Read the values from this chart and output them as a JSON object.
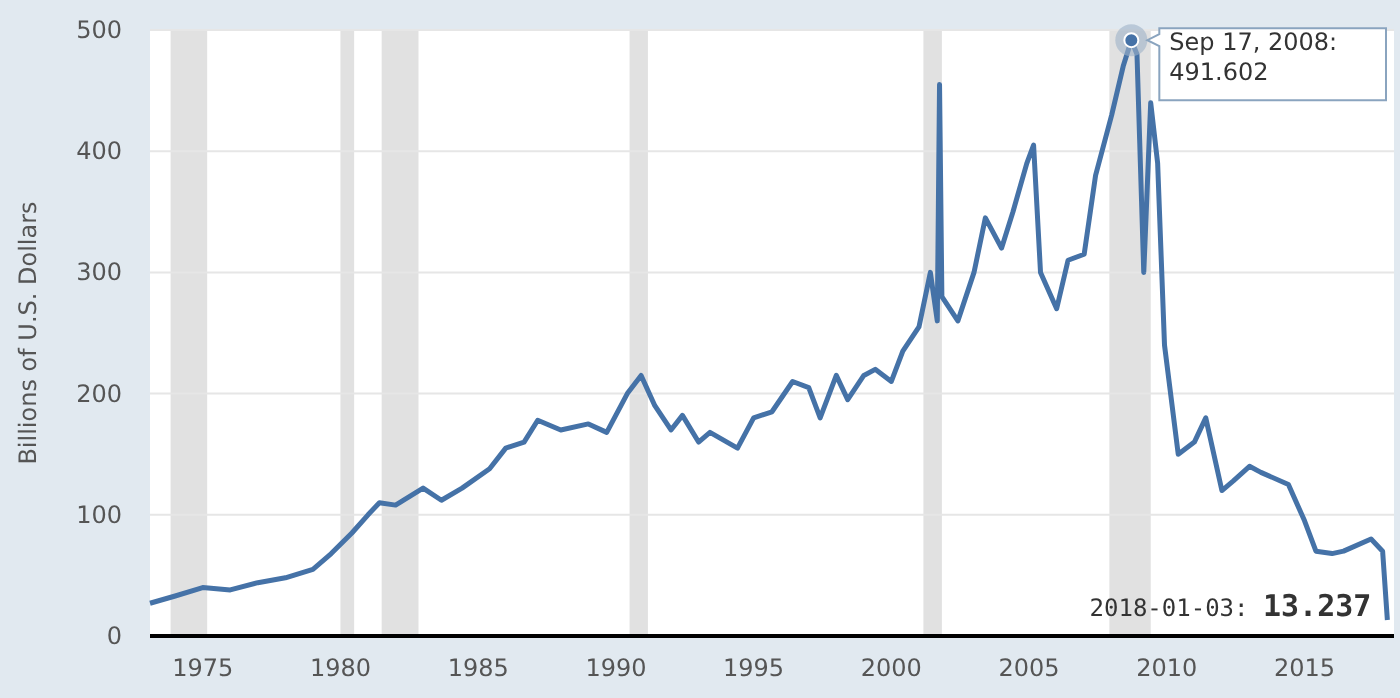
{
  "chart_data": {
    "type": "line",
    "ylabel": "Billions of U.S. Dollars",
    "xlim": [
      "1973-02",
      "2018-04"
    ],
    "xticks": [
      "1975",
      "1980",
      "1985",
      "1990",
      "1995",
      "2000",
      "2005",
      "2010",
      "2015"
    ],
    "ylim": [
      0,
      500
    ],
    "yticks": [
      0,
      100,
      200,
      300,
      400,
      500
    ],
    "grid": "y",
    "marker": "none",
    "line_style": "solid",
    "bands": [
      {
        "axis": "x",
        "from": "1973-11",
        "to": "1975-03",
        "color": "#e1e1e1"
      },
      {
        "axis": "x",
        "from": "1980-01",
        "to": "1980-07",
        "color": "#e1e1e1"
      },
      {
        "axis": "x",
        "from": "1981-07",
        "to": "1982-11",
        "color": "#e1e1e1"
      },
      {
        "axis": "x",
        "from": "1990-07",
        "to": "1991-03",
        "color": "#e1e1e1"
      },
      {
        "axis": "x",
        "from": "2001-03",
        "to": "2001-11",
        "color": "#e1e1e1"
      },
      {
        "axis": "x",
        "from": "2007-12",
        "to": "2009-06",
        "color": "#e1e1e1"
      }
    ],
    "annotations": [
      {
        "text": "Sep 17, 2008: 491.602",
        "x": "2008-09-17",
        "y": 491.602
      },
      {
        "text": "2018-01-03: 13.237",
        "x": "2018-01-03",
        "y": 13.237
      }
    ],
    "series": [
      {
        "color": "#4572a7",
        "x": [
          "1973-02",
          "1974-01",
          "1975-01",
          "1976-01",
          "1977-01",
          "1978-01",
          "1979-01",
          "1979-09",
          "1980-06",
          "1981-01",
          "1981-06",
          "1982-01",
          "1983-01",
          "1983-09",
          "1984-06",
          "1985-06",
          "1986-01",
          "1986-09",
          "1987-03",
          "1988-01",
          "1989-01",
          "1989-09",
          "1990-06",
          "1990-12",
          "1991-06",
          "1992-01",
          "1992-06",
          "1993-01",
          "1993-06",
          "1994-06",
          "1995-01",
          "1995-09",
          "1996-06",
          "1997-01",
          "1997-06",
          "1998-01",
          "1998-06",
          "1999-01",
          "1999-06",
          "2000-01",
          "2000-06",
          "2001-01",
          "2001-06",
          "2001-09",
          "2001-10",
          "2001-11",
          "2002-06",
          "2003-01",
          "2003-06",
          "2004-01",
          "2004-06",
          "2004-12",
          "2005-03",
          "2005-06",
          "2006-01",
          "2006-06",
          "2007-01",
          "2007-06",
          "2008-01",
          "2008-06",
          "2008-09-17",
          "2008-12",
          "2009-03",
          "2009-06",
          "2009-09",
          "2009-12",
          "2010-06",
          "2011-01",
          "2011-06",
          "2012-01",
          "2012-06",
          "2013-01",
          "2013-06",
          "2014-06",
          "2015-01",
          "2015-06",
          "2016-01",
          "2016-06",
          "2017-06",
          "2017-11",
          "2018-01-03"
        ],
        "values": [
          27,
          33,
          40,
          38,
          44,
          48,
          55,
          68,
          85,
          100,
          110,
          108,
          122,
          112,
          122,
          138,
          155,
          160,
          178,
          170,
          175,
          168,
          200,
          215,
          190,
          170,
          182,
          160,
          168,
          155,
          180,
          185,
          210,
          205,
          180,
          215,
          195,
          215,
          220,
          210,
          235,
          255,
          300,
          260,
          455,
          280,
          260,
          300,
          345,
          320,
          350,
          390,
          405,
          300,
          270,
          310,
          315,
          380,
          430,
          470,
          491.602,
          480,
          300,
          440,
          390,
          240,
          150,
          160,
          180,
          120,
          128,
          140,
          135,
          125,
          95,
          70,
          68,
          70,
          80,
          70,
          13.237
        ]
      }
    ]
  }
}
